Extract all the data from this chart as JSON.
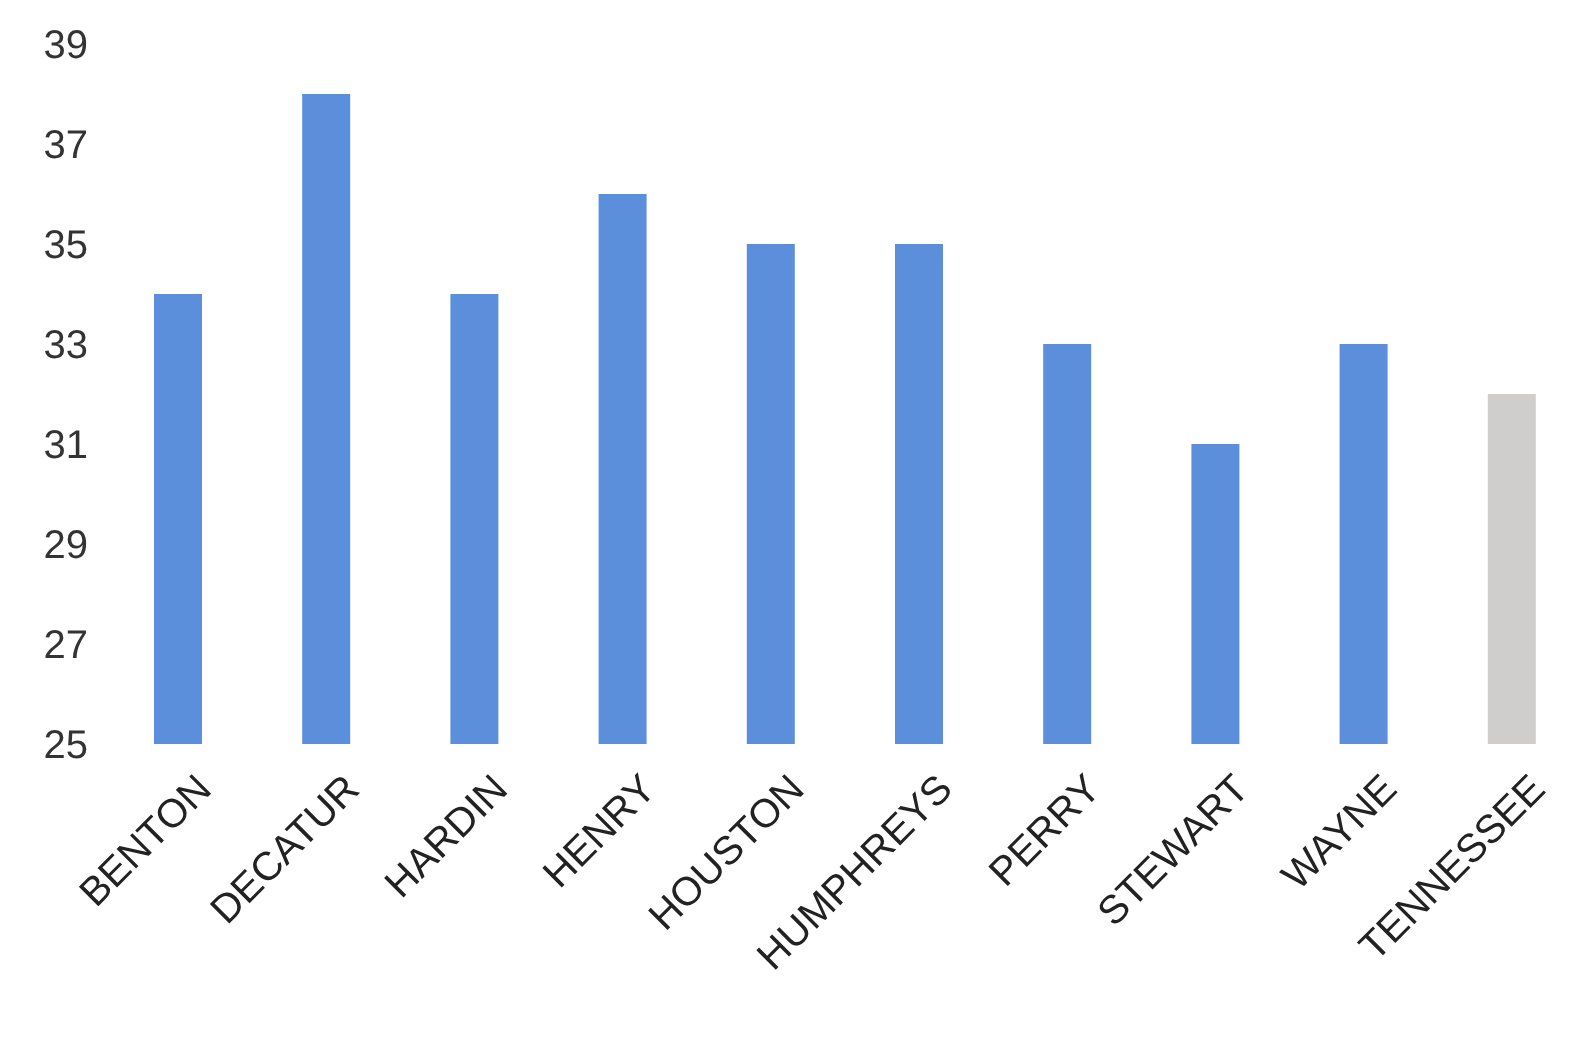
{
  "chart_data": {
    "type": "bar",
    "categories": [
      "BENTON",
      "DECATUR",
      "HARDIN",
      "HENRY",
      "HOUSTON",
      "HUMPHREYS",
      "PERRY",
      "STEWART",
      "WAYNE",
      "TENNESSEE"
    ],
    "values": [
      34,
      38,
      34,
      36,
      35,
      35,
      33,
      31,
      33,
      32
    ],
    "colors": [
      "#5b8fdc",
      "#5b8fdc",
      "#5b8fdc",
      "#5b8fdc",
      "#5b8fdc",
      "#5b8fdc",
      "#5b8fdc",
      "#5b8fdc",
      "#5b8fdc",
      "#d0cdcd"
    ],
    "ylim": [
      25,
      39
    ],
    "yticks": [
      25,
      27,
      29,
      31,
      33,
      35,
      37,
      39
    ],
    "grid": false,
    "legend": false
  }
}
